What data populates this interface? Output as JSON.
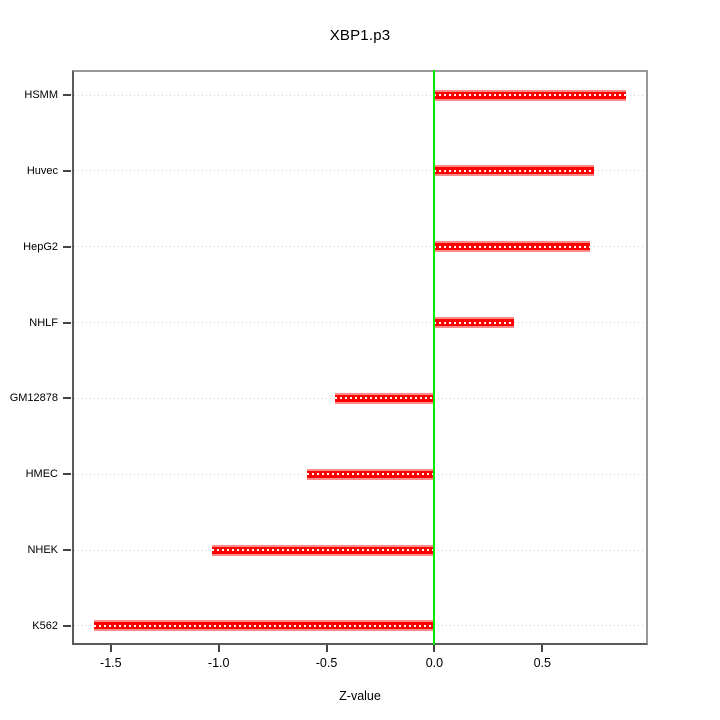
{
  "window": {
    "background": "#ffffff"
  },
  "chart_data": {
    "type": "bar",
    "orientation": "horizontal",
    "title": "XBP1.p3",
    "xlabel": "Z-value",
    "ylabel": "",
    "categories": [
      "HSMM",
      "Huvec",
      "HepG2",
      "NHLF",
      "GM12878",
      "HMEC",
      "NHEK",
      "K562"
    ],
    "values": [
      0.89,
      0.74,
      0.72,
      0.37,
      -0.46,
      -0.59,
      -1.03,
      -1.58
    ],
    "xlim": [
      -1.68,
      0.99
    ],
    "xticks": [
      {
        "label": "-1.5",
        "value": -1.5
      },
      {
        "label": "-1.0",
        "value": -1.0
      },
      {
        "label": "-0.5",
        "value": -0.5
      },
      {
        "label": "0.0",
        "value": 0.0
      },
      {
        "label": "0.5",
        "value": 0.5
      }
    ],
    "grid": true,
    "grid_style": "dotted",
    "legend": null,
    "zero_line_value": 0.0,
    "colors": {
      "bar": "#ff0000",
      "bar_edge": "#ff8a8a",
      "bar_inner_dash": "#ffffff",
      "zero_line": "#00ee00",
      "grid": "#cfcfcf",
      "box_border_light": "#999999",
      "box_border_dark": "#5a5a5a",
      "tick": "#444444",
      "text": "#000000"
    }
  }
}
